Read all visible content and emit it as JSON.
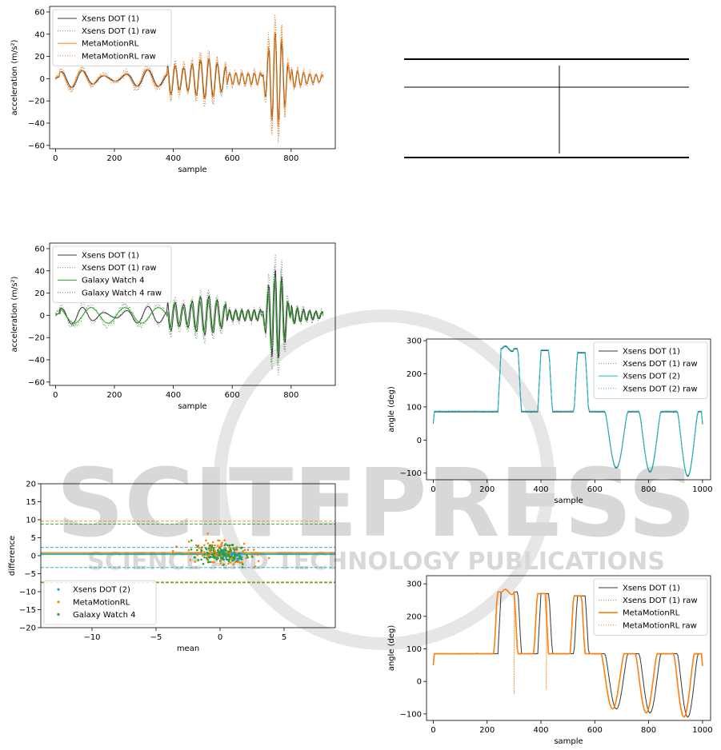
{
  "watermark": {
    "main": "SCITEPRESS",
    "sub": "SCIENCE AND TECHNOLOGY PUBLICATIONS"
  },
  "colors": {
    "xsens": "#3a3a3a",
    "metamotion": "#ff7f0e",
    "galaxy": "#2ca02c",
    "xsens2": "#17becf",
    "xsens2_scatter": "#1f9fd0",
    "grid_line": "#000000"
  },
  "chart_data": [
    {
      "id": "acc1",
      "type": "line",
      "xlabel": "sample",
      "ylabel": "acceleration (m/s²)",
      "xlim": [
        -20,
        950
      ],
      "ylim": [
        -63,
        65
      ],
      "xticks": [
        0,
        200,
        400,
        600,
        800
      ],
      "yticks": [
        -60,
        -40,
        -20,
        0,
        20,
        40,
        60
      ],
      "legend_position": "upper-left",
      "series": [
        {
          "name": "Xsens DOT (1)",
          "color": "#3a3a3a",
          "style": "solid",
          "signal": "accA_ref"
        },
        {
          "name": "Xsens DOT (1) raw",
          "color": "#888888",
          "style": "dotted",
          "signal": "accA_ref_raw"
        },
        {
          "name": "MetaMotionRL",
          "color": "#ff7f0e",
          "style": "solid",
          "signal": "accA_cmp"
        },
        {
          "name": "MetaMotionRL raw",
          "color": "#ff7f0e",
          "style": "dotted",
          "signal": "accA_cmp_raw"
        }
      ]
    },
    {
      "id": "table",
      "type": "table",
      "rows": [
        [
          "",
          ""
        ]
      ]
    },
    {
      "id": "acc2",
      "type": "line",
      "xlabel": "sample",
      "ylabel": "acceleration (m/s²)",
      "xlim": [
        -20,
        950
      ],
      "ylim": [
        -63,
        65
      ],
      "xticks": [
        0,
        200,
        400,
        600,
        800
      ],
      "yticks": [
        -60,
        -40,
        -20,
        0,
        20,
        40,
        60
      ],
      "legend_position": "upper-left",
      "series": [
        {
          "name": "Xsens DOT (1)",
          "color": "#3a3a3a",
          "style": "solid",
          "signal": "accB_ref"
        },
        {
          "name": "Xsens DOT (1) raw",
          "color": "#888888",
          "style": "dotted",
          "signal": "accB_ref_raw"
        },
        {
          "name": "Galaxy Watch 4",
          "color": "#2ca02c",
          "style": "solid",
          "signal": "accB_cmp"
        },
        {
          "name": "Galaxy Watch 4 raw",
          "color": "#2ca02c",
          "style": "dotted",
          "signal": "accB_cmp_raw"
        }
      ]
    },
    {
      "id": "angle1",
      "type": "line",
      "xlabel": "sample",
      "ylabel": "angle (deg)",
      "xlim": [
        -25,
        1030
      ],
      "ylim": [
        -120,
        305
      ],
      "xticks": [
        0,
        200,
        400,
        600,
        800,
        1000
      ],
      "yticks": [
        -100,
        0,
        100,
        200,
        300
      ],
      "legend_position": "upper-right",
      "series": [
        {
          "name": "Xsens DOT (1)",
          "color": "#3a3a3a",
          "style": "solid",
          "signal": "ang1_ref"
        },
        {
          "name": "Xsens DOT (1) raw",
          "color": "#888888",
          "style": "dotted",
          "signal": "ang1_ref_raw"
        },
        {
          "name": "Xsens DOT (2)",
          "color": "#17becf",
          "style": "solid",
          "signal": "ang1_cmp"
        },
        {
          "name": "Xsens DOT (2) raw",
          "color": "#17becf",
          "style": "dotted",
          "signal": "ang1_cmp_raw"
        }
      ]
    },
    {
      "id": "bland",
      "type": "scatter",
      "xlabel": "mean",
      "ylabel": "difference",
      "xlim": [
        -14,
        9
      ],
      "ylim": [
        -20,
        20
      ],
      "xticks": [
        -10,
        -5,
        0,
        5
      ],
      "yticks": [
        -20,
        -15,
        -10,
        -5,
        0,
        5,
        10,
        15,
        20
      ],
      "legend_position": "lower-left",
      "series": [
        {
          "name": "Xsens DOT (2)",
          "color": "#1f9fd0",
          "mean": 0.3,
          "loa": [
            -3.3,
            2.3
          ]
        },
        {
          "name": "MetaMotionRL",
          "color": "#ff7f0e",
          "mean": 0.9,
          "loa": [
            -7.3,
            9.6
          ]
        },
        {
          "name": "Galaxy Watch 4",
          "color": "#2ca02c",
          "mean": 0.6,
          "loa": [
            -7.5,
            8.8
          ]
        }
      ]
    },
    {
      "id": "angle2",
      "type": "line",
      "xlabel": "sample",
      "ylabel": "angle (deg)",
      "xlim": [
        -25,
        1030
      ],
      "ylim": [
        -120,
        325
      ],
      "xticks": [
        0,
        200,
        400,
        600,
        800,
        1000
      ],
      "yticks": [
        -100,
        0,
        100,
        200,
        300
      ],
      "legend_position": "upper-right",
      "series": [
        {
          "name": "Xsens DOT (1)",
          "color": "#3a3a3a",
          "style": "solid",
          "signal": "ang2_ref"
        },
        {
          "name": "Xsens DOT (1) raw",
          "color": "#888888",
          "style": "dotted",
          "signal": "ang2_ref_raw"
        },
        {
          "name": "MetaMotionRL",
          "color": "#ff7f0e",
          "style": "solid-thick",
          "signal": "ang2_cmp"
        },
        {
          "name": "MetaMotionRL raw",
          "color": "#ff7f0e",
          "style": "dotted",
          "signal": "ang2_cmp_raw"
        }
      ]
    }
  ]
}
